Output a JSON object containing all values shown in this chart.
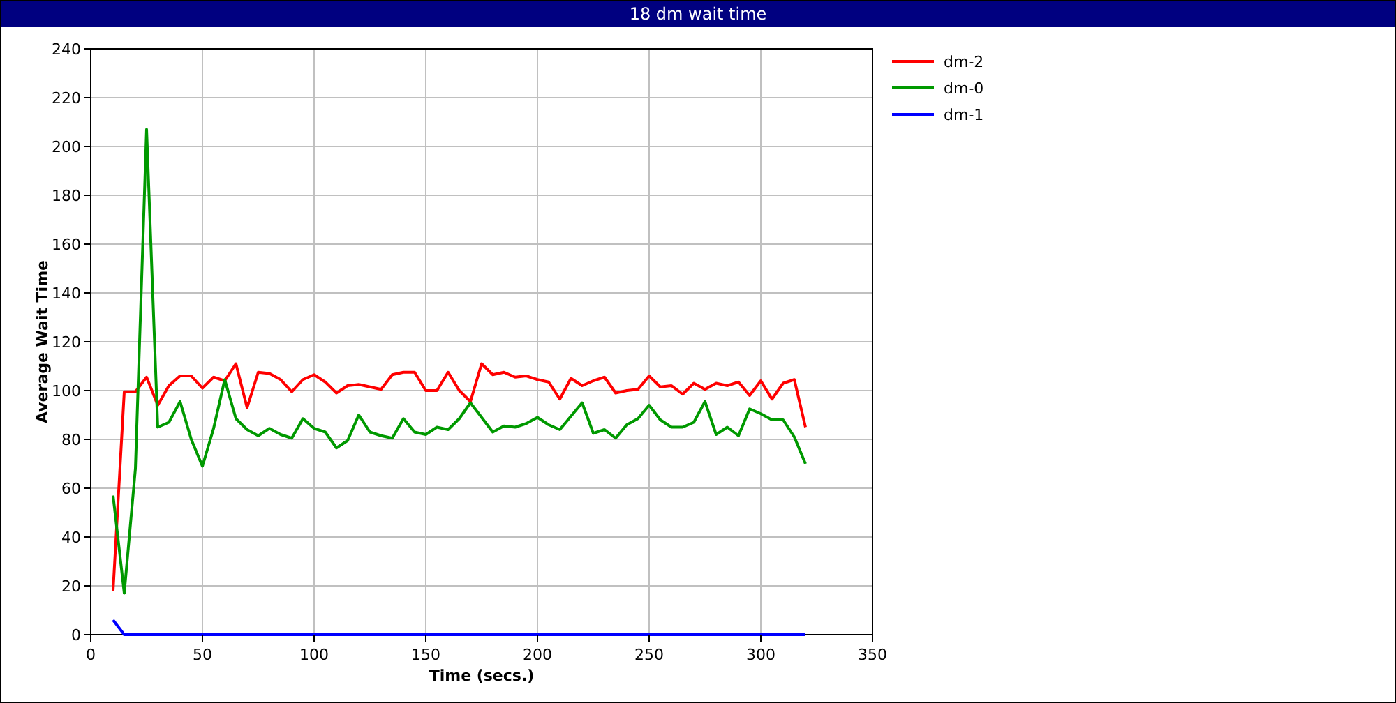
{
  "chart_data": {
    "type": "line",
    "title": "18 dm wait time",
    "xlabel": "Time (secs.)",
    "ylabel": "Average Wait Time",
    "x": [
      10,
      15,
      20,
      25,
      30,
      35,
      40,
      45,
      50,
      55,
      60,
      65,
      70,
      75,
      80,
      85,
      90,
      95,
      100,
      105,
      110,
      115,
      120,
      125,
      130,
      135,
      140,
      145,
      150,
      155,
      160,
      165,
      170,
      175,
      180,
      185,
      190,
      195,
      200,
      205,
      210,
      215,
      220,
      225,
      230,
      235,
      240,
      245,
      250,
      255,
      260,
      265,
      270,
      275,
      280,
      285,
      290,
      295,
      300,
      305,
      310,
      315,
      320
    ],
    "series": [
      {
        "name": "dm-2",
        "color": "#ff0000",
        "values": [
          18,
          99.5,
          99.5,
          105.5,
          94,
          102,
          106,
          106,
          101,
          105.5,
          104,
          111,
          93,
          107.5,
          107,
          104.5,
          99.5,
          104.5,
          106.5,
          103.5,
          99,
          102,
          102.5,
          101.5,
          100.5,
          106.5,
          107.5,
          107.5,
          100,
          100,
          107.5,
          100,
          95.5,
          111,
          106.5,
          107.5,
          105.5,
          106,
          104.5,
          103.5,
          96.5,
          105,
          102,
          104,
          105.5,
          99,
          100,
          100.5,
          106,
          101.5,
          102,
          98.5,
          103,
          100.5,
          103,
          102,
          103.5,
          98,
          104,
          96.5,
          103,
          104.5,
          85
        ]
      },
      {
        "name": "dm-0",
        "color": "#009900",
        "values": [
          57,
          17,
          68,
          207,
          85,
          87,
          95.5,
          80,
          69,
          84.5,
          104.5,
          88.5,
          84,
          81.5,
          84.5,
          82,
          80.5,
          88.5,
          84.5,
          83,
          76.5,
          79.5,
          90,
          83,
          81.5,
          80.5,
          88.5,
          83,
          82,
          85,
          84,
          88.5,
          95,
          89,
          83,
          85.5,
          85,
          86.5,
          89,
          86,
          84,
          89.5,
          95,
          82.5,
          84,
          80.5,
          86,
          88.5,
          94,
          88,
          85,
          85,
          87,
          95.5,
          82,
          85,
          81.5,
          92.5,
          90.5,
          88,
          88,
          81,
          70
        ]
      },
      {
        "name": "dm-1",
        "color": "#0000ff",
        "values": [
          6,
          0,
          0,
          0,
          0,
          0,
          0,
          0,
          0,
          0,
          0,
          0,
          0,
          0,
          0,
          0,
          0,
          0,
          0,
          0,
          0,
          0,
          0,
          0,
          0,
          0,
          0,
          0,
          0,
          0,
          0,
          0,
          0,
          0,
          0,
          0,
          0,
          0,
          0,
          0,
          0,
          0,
          0,
          0,
          0,
          0,
          0,
          0,
          0,
          0,
          0,
          0,
          0,
          0,
          0,
          0,
          0,
          0,
          0,
          0,
          0,
          0,
          0
        ]
      }
    ],
    "xlim": [
      0,
      350
    ],
    "xticks": [
      0,
      50,
      100,
      150,
      200,
      250,
      300,
      350
    ],
    "ylim": [
      0,
      240
    ],
    "yticks": [
      0,
      20,
      40,
      60,
      80,
      100,
      120,
      140,
      160,
      180,
      200,
      220,
      240
    ],
    "grid": true,
    "legend": "top right",
    "marker": "none",
    "line_style": "solid"
  }
}
